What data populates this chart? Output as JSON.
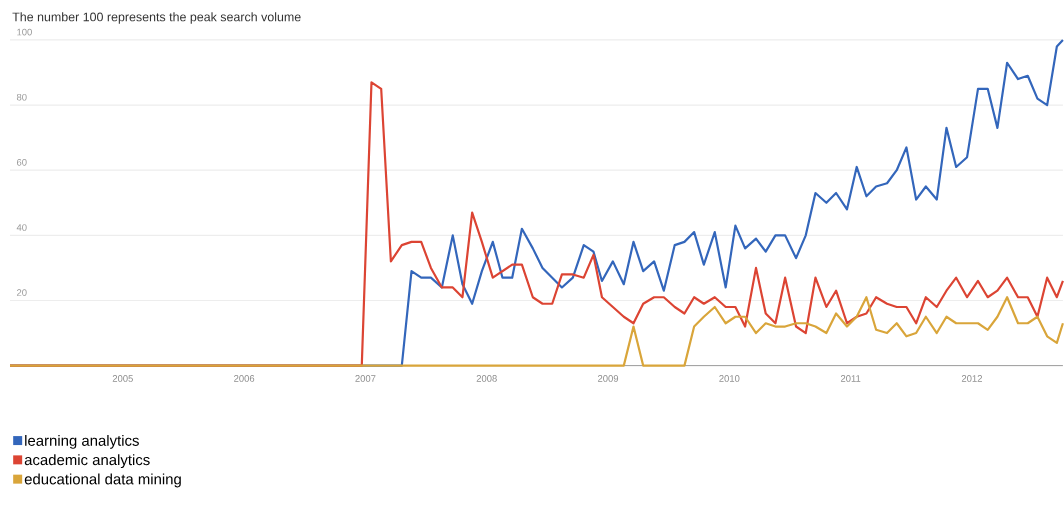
{
  "chart_data": {
    "type": "line",
    "title": "The number 100 represents the peak search volume",
    "xlim": [
      2004.07,
      2012.75
    ],
    "ylim": [
      0,
      100
    ],
    "xticks": [
      2005,
      2006,
      2007,
      2008,
      2009,
      2010,
      2011,
      2012
    ],
    "yticks": [
      20,
      40,
      60,
      80,
      100
    ],
    "grid": "y",
    "legend": "bottom left",
    "marker": "none",
    "line_style": "solid",
    "series": [
      {
        "name": "learning analytics",
        "color": "#3366bb",
        "x": [
          2004.07,
          2007.3,
          2007.38,
          2007.46,
          2007.54,
          2007.63,
          2007.72,
          2007.8,
          2007.88,
          2007.96,
          2008.05,
          2008.13,
          2008.21,
          2008.29,
          2008.38,
          2008.46,
          2008.54,
          2008.62,
          2008.71,
          2008.8,
          2008.88,
          2008.95,
          2009.04,
          2009.13,
          2009.21,
          2009.29,
          2009.38,
          2009.46,
          2009.55,
          2009.63,
          2009.71,
          2009.79,
          2009.88,
          2009.97,
          2010.05,
          2010.13,
          2010.22,
          2010.3,
          2010.38,
          2010.46,
          2010.55,
          2010.63,
          2010.71,
          2010.8,
          2010.88,
          2010.97,
          2011.05,
          2011.13,
          2011.21,
          2011.3,
          2011.38,
          2011.46,
          2011.54,
          2011.62,
          2011.71,
          2011.79,
          2011.87,
          2011.96,
          2012.05,
          2012.13,
          2012.21,
          2012.29,
          2012.38,
          2012.46,
          2012.54,
          2012.62,
          2012.7,
          2012.75
        ],
        "values": [
          0,
          0,
          29,
          27,
          27,
          24,
          40,
          25,
          19,
          29,
          38,
          27,
          27,
          42,
          36,
          30,
          27,
          24,
          27,
          37,
          35,
          26,
          32,
          25,
          38,
          29,
          32,
          23,
          37,
          38,
          41,
          31,
          41,
          24,
          43,
          36,
          39,
          35,
          40,
          40,
          33,
          40,
          53,
          50,
          53,
          48,
          61,
          52,
          55,
          56,
          60,
          67,
          51,
          55,
          51,
          73,
          61,
          64,
          85,
          85,
          73,
          93,
          88,
          89,
          82,
          80,
          98,
          100
        ]
      },
      {
        "name": "academic analytics",
        "color": "#dc4433",
        "x": [
          2004.07,
          2006.97,
          2007.05,
          2007.13,
          2007.21,
          2007.3,
          2007.38,
          2007.46,
          2007.54,
          2007.63,
          2007.72,
          2007.8,
          2007.88,
          2007.96,
          2008.05,
          2008.13,
          2008.21,
          2008.29,
          2008.38,
          2008.46,
          2008.54,
          2008.62,
          2008.71,
          2008.8,
          2008.88,
          2008.95,
          2009.04,
          2009.13,
          2009.21,
          2009.29,
          2009.38,
          2009.46,
          2009.55,
          2009.63,
          2009.71,
          2009.79,
          2009.88,
          2009.97,
          2010.05,
          2010.13,
          2010.22,
          2010.3,
          2010.38,
          2010.46,
          2010.55,
          2010.63,
          2010.71,
          2010.8,
          2010.88,
          2010.97,
          2011.05,
          2011.13,
          2011.21,
          2011.3,
          2011.38,
          2011.46,
          2011.54,
          2011.62,
          2011.71,
          2011.79,
          2011.87,
          2011.96,
          2012.05,
          2012.13,
          2012.21,
          2012.29,
          2012.38,
          2012.46,
          2012.54,
          2012.62,
          2012.7,
          2012.75
        ],
        "values": [
          0,
          0,
          87,
          85,
          32,
          37,
          38,
          38,
          30,
          24,
          24,
          21,
          47,
          38,
          27,
          29,
          31,
          31,
          21,
          19,
          19,
          28,
          28,
          27,
          34,
          21,
          18,
          15,
          13,
          19,
          21,
          21,
          18,
          16,
          21,
          19,
          21,
          18,
          18,
          12,
          30,
          16,
          13,
          27,
          12,
          10,
          27,
          18,
          23,
          13,
          15,
          16,
          21,
          19,
          18,
          18,
          13,
          21,
          18,
          23,
          27,
          21,
          26,
          21,
          23,
          27,
          21,
          21,
          15,
          27,
          21,
          26
        ]
      },
      {
        "name": "educational data mining",
        "color": "#d9a53a",
        "x": [
          2004.07,
          2009.13,
          2009.21,
          2009.29,
          2009.63,
          2009.71,
          2009.79,
          2009.88,
          2009.97,
          2010.05,
          2010.13,
          2010.22,
          2010.3,
          2010.38,
          2010.46,
          2010.55,
          2010.63,
          2010.71,
          2010.8,
          2010.88,
          2010.97,
          2011.05,
          2011.13,
          2011.21,
          2011.3,
          2011.38,
          2011.46,
          2011.54,
          2011.62,
          2011.71,
          2011.79,
          2011.87,
          2011.96,
          2012.05,
          2012.13,
          2012.21,
          2012.29,
          2012.38,
          2012.46,
          2012.54,
          2012.62,
          2012.7,
          2012.75
        ],
        "values": [
          0,
          0,
          12,
          0,
          0,
          12,
          15,
          18,
          13,
          15,
          15,
          10,
          13,
          12,
          12,
          13,
          13,
          12,
          10,
          16,
          12,
          15,
          21,
          11,
          10,
          13,
          9,
          10,
          15,
          10,
          15,
          13,
          13,
          13,
          11,
          15,
          21,
          13,
          13,
          15,
          9,
          7,
          13
        ]
      }
    ]
  }
}
